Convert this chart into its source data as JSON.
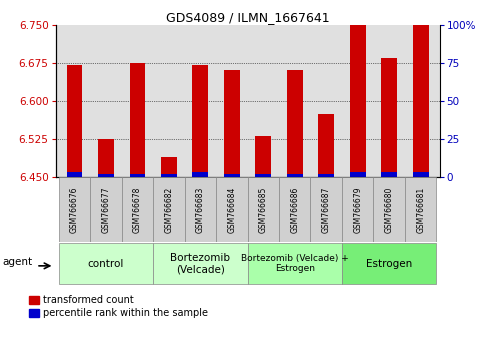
{
  "title": "GDS4089 / ILMN_1667641",
  "samples": [
    "GSM766676",
    "GSM766677",
    "GSM766678",
    "GSM766682",
    "GSM766683",
    "GSM766684",
    "GSM766685",
    "GSM766686",
    "GSM766687",
    "GSM766679",
    "GSM766680",
    "GSM766681"
  ],
  "red_values": [
    6.67,
    6.525,
    6.675,
    6.49,
    6.67,
    6.66,
    6.53,
    6.66,
    6.575,
    6.75,
    6.685,
    6.75
  ],
  "blue_values": [
    6.46,
    6.455,
    6.455,
    6.455,
    6.46,
    6.455,
    6.455,
    6.455,
    6.455,
    6.46,
    6.46,
    6.46
  ],
  "baseline": 6.45,
  "ylim_left": [
    6.45,
    6.75
  ],
  "ylim_right": [
    0,
    100
  ],
  "yticks_left": [
    6.45,
    6.525,
    6.6,
    6.675,
    6.75
  ],
  "yticks_right": [
    0,
    25,
    50,
    75,
    100
  ],
  "ytick_labels_right": [
    "0",
    "25",
    "50",
    "75",
    "100%"
  ],
  "groups": [
    {
      "label": "control",
      "start": 0,
      "end": 3,
      "color": "#ccffcc"
    },
    {
      "label": "Bortezomib\n(Velcade)",
      "start": 3,
      "end": 6,
      "color": "#ccffcc"
    },
    {
      "label": "Bortezomib (Velcade) +\nEstrogen",
      "start": 6,
      "end": 9,
      "color": "#aaffaa"
    },
    {
      "label": "Estrogen",
      "start": 9,
      "end": 12,
      "color": "#77ee77"
    }
  ],
  "agent_label": "agent",
  "legend_red": "transformed count",
  "legend_blue": "percentile rank within the sample",
  "bar_width": 0.5,
  "plot_bg_color": "#e0e0e0",
  "red_color": "#cc0000",
  "blue_color": "#0000cc",
  "left_axis_color": "#cc0000",
  "right_axis_color": "#0000bb"
}
